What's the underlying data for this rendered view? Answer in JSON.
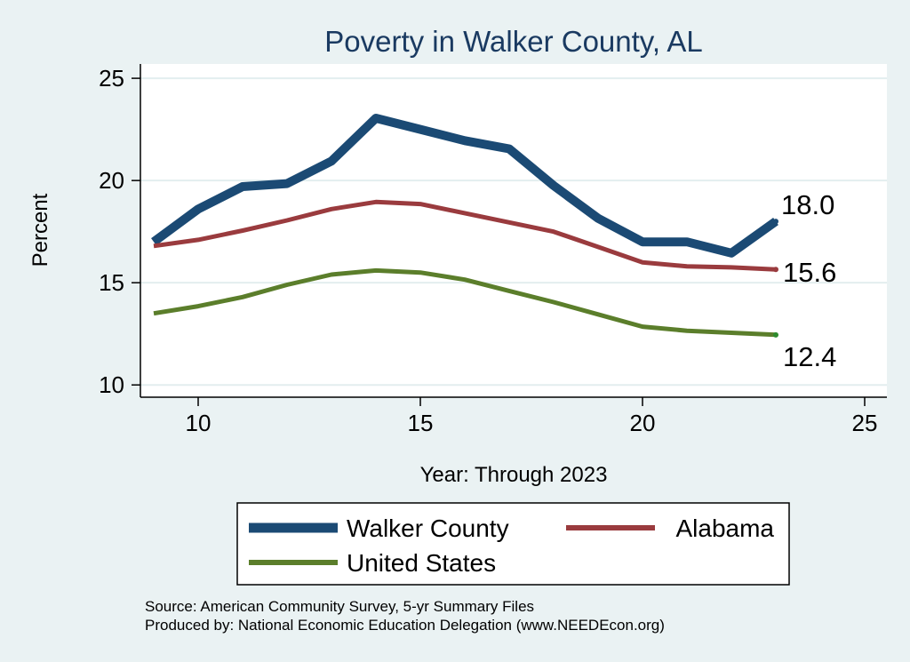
{
  "chart_data": {
    "type": "line",
    "title": "Poverty in Walker County, AL",
    "xlabel": "Year: Through 2023",
    "ylabel": "Percent",
    "xlim": [
      8.7,
      25.5
    ],
    "ylim": [
      9.4,
      25.7
    ],
    "xticks": [
      10,
      15,
      20,
      25
    ],
    "yticks": [
      10,
      15,
      20,
      25
    ],
    "grid": "horizontal",
    "legend_position": "bottom",
    "x": [
      9,
      10,
      11,
      12,
      13,
      14,
      15,
      16,
      17,
      18,
      19,
      20,
      21,
      22,
      23
    ],
    "series": [
      {
        "name": "Walker County",
        "color": "#1b4a74",
        "values": [
          17.0,
          18.6,
          19.7,
          19.85,
          20.95,
          23.05,
          22.5,
          21.95,
          21.55,
          19.75,
          18.15,
          17.0,
          17.0,
          16.45,
          18.0
        ],
        "end_label": "18.0"
      },
      {
        "name": "Alabama",
        "color": "#9a3b3e",
        "values": [
          16.8,
          17.1,
          17.55,
          18.05,
          18.6,
          18.95,
          18.85,
          18.4,
          17.95,
          17.5,
          16.75,
          16.0,
          15.8,
          15.75,
          15.65
        ],
        "end_label": "15.6"
      },
      {
        "name": "United States",
        "color": "#5b7e2b",
        "values": [
          13.5,
          13.85,
          14.3,
          14.9,
          15.4,
          15.6,
          15.5,
          15.15,
          14.6,
          14.05,
          13.45,
          12.85,
          12.65,
          12.55,
          12.45
        ],
        "end_label": "12.4"
      }
    ],
    "notes": [
      "Source: American Community Survey, 5-yr Summary Files",
      "Produced by: National Economic Education Delegation (www.NEEDEcon.org)"
    ]
  }
}
